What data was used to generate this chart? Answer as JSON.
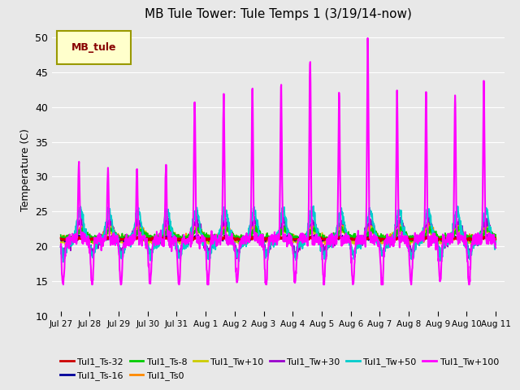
{
  "title": "MB Tule Tower: Tule Temps 1 (3/19/14-now)",
  "ylabel": "Temperature (C)",
  "ylim": [
    10,
    52
  ],
  "yticks": [
    10,
    15,
    20,
    25,
    30,
    35,
    40,
    45,
    50
  ],
  "bg_color": "#e8e8e8",
  "legend_label": "MB_tule",
  "legend_bg": "#ffffcc",
  "legend_border": "#999900",
  "series_colors": {
    "Tul1_Ts-32": "#cc0000",
    "Tul1_Ts-16": "#000099",
    "Tul1_Ts-8": "#00cc00",
    "Tul1_Ts0": "#ff8800",
    "Tul1_Tw+10": "#cccc00",
    "Tul1_Tw+30": "#9900cc",
    "Tul1_Tw+50": "#00cccc",
    "Tul1_Tw+100": "#ff00ff"
  },
  "xtick_labels": [
    "Jul 27",
    "Jul 28",
    "Jul 29",
    "Jul 30",
    "Jul 31",
    "Aug 1",
    "Aug 2",
    "Aug 3",
    "Aug 4",
    "Aug 5",
    "Aug 6",
    "Aug 7",
    "Aug 8",
    "Aug 9",
    "Aug 10",
    "Aug 11"
  ]
}
